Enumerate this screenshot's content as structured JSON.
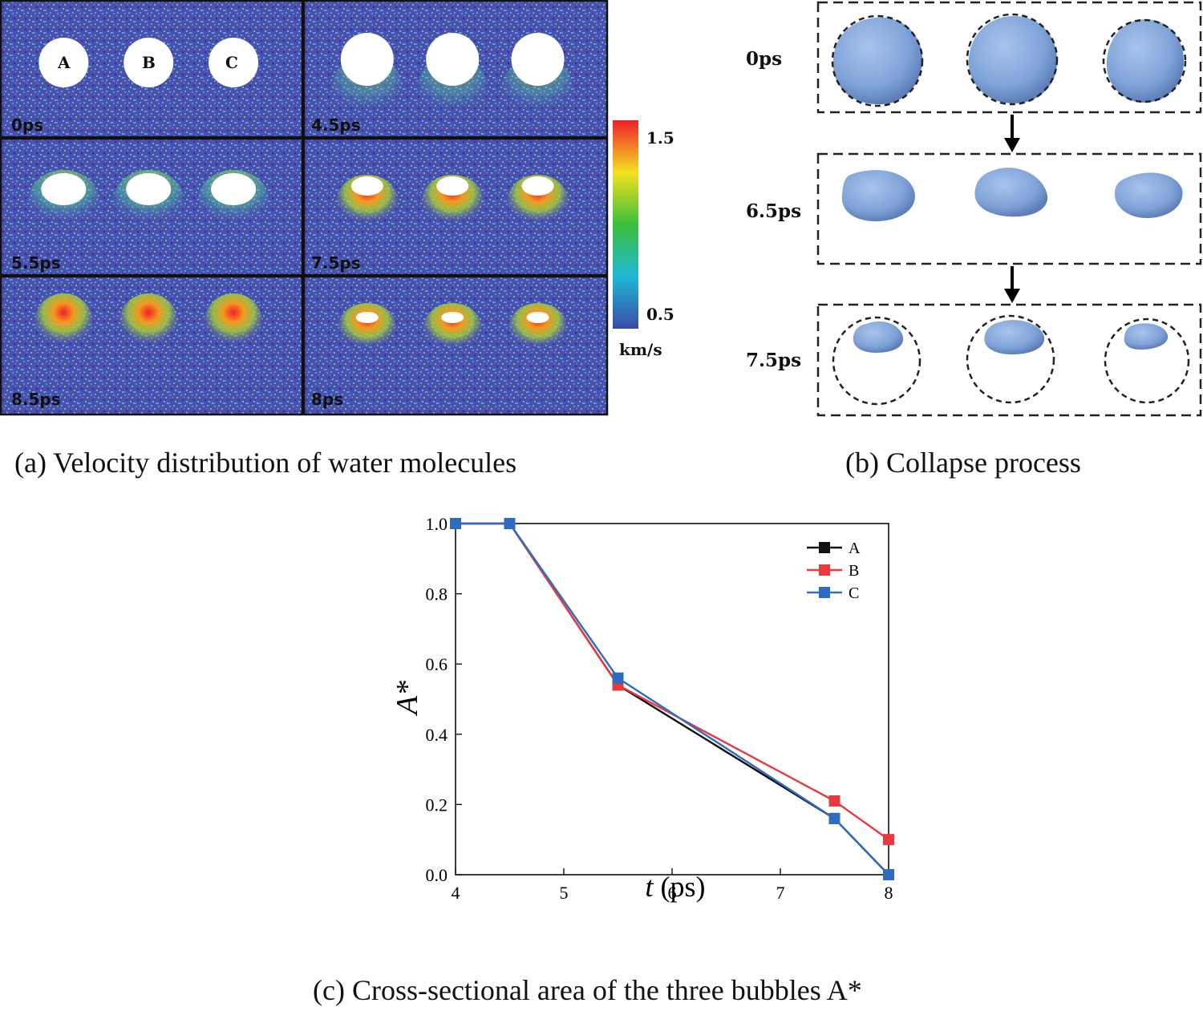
{
  "panel_a": {
    "caption": "(a) Velocity distribution of water molecules",
    "frames": [
      {
        "label": "0ps",
        "stage": 0
      },
      {
        "label": "4.5ps",
        "stage": 1
      },
      {
        "label": "5.5ps",
        "stage": 2
      },
      {
        "label": "7.5ps",
        "stage": 3
      },
      {
        "label": "8.5ps",
        "stage": 5
      },
      {
        "label": "8ps",
        "stage": 4
      }
    ],
    "bubble_labels": [
      "A",
      "B",
      "C"
    ],
    "colorbar": {
      "max_label": "1.5",
      "min_label": "0.5",
      "unit": "km/s",
      "colors": [
        "#ef1f2a",
        "#f3e21f",
        "#3cbf3a",
        "#1fb7d6",
        "#3a4aa8"
      ]
    },
    "field_colors": {
      "base": "#4b4fb0",
      "speckle": [
        "#5c8fd0",
        "#3db7c7",
        "#6fc56a",
        "#2c2e8f",
        "#7aa6e0"
      ]
    }
  },
  "panel_b": {
    "caption": "(b) Collapse process",
    "stages": [
      "0ps",
      "6.5ps",
      "7.5ps"
    ],
    "bubble_color": "#7fa3d8"
  },
  "chart_data": {
    "type": "line",
    "title": "(c) Cross-sectional area of the three bubbles A*",
    "xlabel_italic": "t",
    "xlabel_rest": " (ps)",
    "ylabel": "A*",
    "xlim": [
      4,
      8
    ],
    "ylim": [
      0,
      1
    ],
    "xticks": [
      "4",
      "5",
      "6",
      "7",
      "8"
    ],
    "yticks": [
      "0.0",
      "0.2",
      "0.4",
      "0.6",
      "0.8",
      "1.0"
    ],
    "legend_position": "top-right",
    "series": [
      {
        "name": "A",
        "color": "#111111",
        "x": [
          4,
          4.5,
          5.5,
          7.5,
          8
        ],
        "y": [
          1.0,
          1.0,
          0.54,
          0.16,
          0.0
        ]
      },
      {
        "name": "B",
        "color": "#e8393f",
        "x": [
          4,
          4.5,
          5.5,
          7.5,
          8
        ],
        "y": [
          1.0,
          1.0,
          0.54,
          0.21,
          0.1
        ]
      },
      {
        "name": "C",
        "color": "#2f6bbf",
        "x": [
          4,
          4.5,
          5.5,
          7.5,
          8
        ],
        "y": [
          1.0,
          1.0,
          0.56,
          0.16,
          0.0
        ]
      }
    ]
  }
}
